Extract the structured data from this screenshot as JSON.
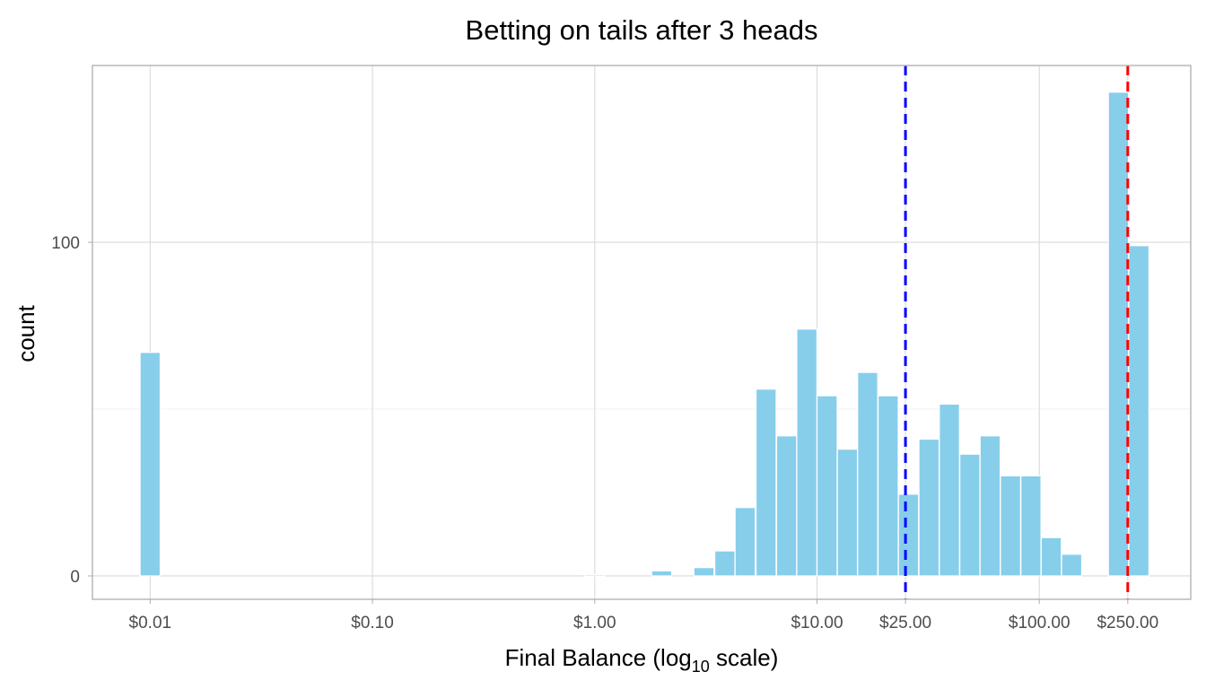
{
  "chart_data": {
    "type": "bar",
    "title": "Betting on tails after 3 heads",
    "xlabel": {
      "main": "Final Balance (log",
      "subscript": "10",
      "suffix": " scale)"
    },
    "ylabel": "count",
    "x_scale": "log10",
    "xlim": [
      0.0055,
      480
    ],
    "ylim": [
      -7,
      153
    ],
    "x_ticks": [
      {
        "value": 0.01,
        "label": "$0.01"
      },
      {
        "value": 0.1,
        "label": "$0.10"
      },
      {
        "value": 1,
        "label": "$1.00"
      },
      {
        "value": 10,
        "label": "$10.00"
      },
      {
        "value": 25,
        "label": "$25.00"
      },
      {
        "value": 100,
        "label": "$100.00"
      },
      {
        "value": 250,
        "label": "$250.00"
      }
    ],
    "y_ticks": [
      {
        "value": 0,
        "label": "0"
      },
      {
        "value": 100,
        "label": "100"
      }
    ],
    "y_minor_gridlines": [
      50
    ],
    "bin_width_log10": 0.0905,
    "bars": [
      {
        "center": 0.01,
        "count": 67
      },
      {
        "center": 1.0,
        "count": 0.4
      },
      {
        "center": 2.0,
        "count": 1.5
      },
      {
        "center": 3.1,
        "count": 2.5
      },
      {
        "center": 3.85,
        "count": 7.5
      },
      {
        "center": 4.75,
        "count": 20.5
      },
      {
        "center": 5.9,
        "count": 56
      },
      {
        "center": 7.3,
        "count": 42
      },
      {
        "center": 9.0,
        "count": 74
      },
      {
        "center": 11.1,
        "count": 54
      },
      {
        "center": 13.7,
        "count": 38
      },
      {
        "center": 16.9,
        "count": 61
      },
      {
        "center": 20.9,
        "count": 54
      },
      {
        "center": 25.8,
        "count": 24.5
      },
      {
        "center": 31.9,
        "count": 41
      },
      {
        "center": 39.4,
        "count": 51.5
      },
      {
        "center": 48.7,
        "count": 36.5
      },
      {
        "center": 60.1,
        "count": 42
      },
      {
        "center": 74.2,
        "count": 30
      },
      {
        "center": 91.7,
        "count": 30
      },
      {
        "center": 113.2,
        "count": 11.5
      },
      {
        "center": 139.8,
        "count": 6.5
      },
      {
        "center": 227.0,
        "count": 145
      },
      {
        "center": 280.5,
        "count": 99
      }
    ],
    "vlines": [
      {
        "x": 25,
        "color": "#0000ff",
        "linetype": "dashed"
      },
      {
        "x": 250,
        "color": "#ff0000",
        "linetype": "dashed"
      }
    ],
    "bar_color": "#87ceeb",
    "grid": true,
    "legend": "none"
  }
}
